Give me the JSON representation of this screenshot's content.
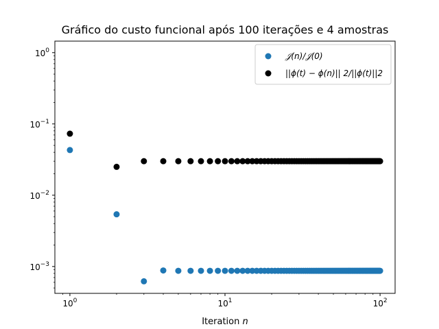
{
  "chart_data": {
    "type": "scatter",
    "title": "Gráfico do custo funcional após 100 iterações e 4 amostras",
    "xlabel": "Iteration",
    "xlabel_var": "n",
    "ylabel": "",
    "xscale": "log",
    "yscale": "log",
    "xlim": [
      0.8,
      125
    ],
    "ylim": [
      0.00042,
      1.45
    ],
    "grid": false,
    "legend_position": "top-right",
    "x_ticks": [
      {
        "value": 1,
        "base": "10",
        "exp": "0"
      },
      {
        "value": 10,
        "base": "10",
        "exp": "1"
      },
      {
        "value": 100,
        "base": "10",
        "exp": "2"
      }
    ],
    "y_ticks": [
      {
        "value": 0.001,
        "base": "10",
        "exp": "−3"
      },
      {
        "value": 0.01,
        "base": "10",
        "exp": "−2"
      },
      {
        "value": 0.1,
        "base": "10",
        "exp": "−1"
      },
      {
        "value": 1,
        "base": "10",
        "exp": "0"
      }
    ],
    "series": [
      {
        "name": "𝒥(n)/𝒥(0)",
        "color": "#1f77b4",
        "x": [
          1,
          2,
          3,
          4,
          5,
          6,
          7,
          8,
          9,
          10,
          11,
          12,
          13,
          14,
          15,
          16,
          17,
          18,
          19,
          20,
          21,
          22,
          23,
          24,
          25,
          26,
          27,
          28,
          29,
          30,
          31,
          32,
          33,
          34,
          35,
          36,
          37,
          38,
          39,
          40,
          41,
          42,
          43,
          44,
          45,
          46,
          47,
          48,
          49,
          50,
          51,
          52,
          53,
          54,
          55,
          56,
          57,
          58,
          59,
          60,
          61,
          62,
          63,
          64,
          65,
          66,
          67,
          68,
          69,
          70,
          71,
          72,
          73,
          74,
          75,
          76,
          77,
          78,
          79,
          80,
          81,
          82,
          83,
          84,
          85,
          86,
          87,
          88,
          89,
          90,
          91,
          92,
          93,
          94,
          95,
          96,
          97,
          98,
          99,
          100
        ],
        "y": [
          0.043,
          0.0054,
          0.00062,
          0.00088,
          0.00087,
          0.00087,
          0.00087,
          0.00087,
          0.00087,
          0.00087,
          0.00087,
          0.00087,
          0.00087,
          0.00087,
          0.00087,
          0.00087,
          0.00087,
          0.00087,
          0.00087,
          0.00087,
          0.00087,
          0.00087,
          0.00087,
          0.00087,
          0.00087,
          0.00087,
          0.00087,
          0.00087,
          0.00087,
          0.00087,
          0.00087,
          0.00087,
          0.00087,
          0.00087,
          0.00087,
          0.00087,
          0.00087,
          0.00087,
          0.00087,
          0.00087,
          0.00087,
          0.00087,
          0.00087,
          0.00087,
          0.00087,
          0.00087,
          0.00087,
          0.00087,
          0.00087,
          0.00087,
          0.00087,
          0.00087,
          0.00087,
          0.00087,
          0.00087,
          0.00087,
          0.00087,
          0.00087,
          0.00087,
          0.00087,
          0.00087,
          0.00087,
          0.00087,
          0.00087,
          0.00087,
          0.00087,
          0.00087,
          0.00087,
          0.00087,
          0.00087,
          0.00087,
          0.00087,
          0.00087,
          0.00087,
          0.00087,
          0.00087,
          0.00087,
          0.00087,
          0.00087,
          0.00087,
          0.00087,
          0.00087,
          0.00087,
          0.00087,
          0.00087,
          0.00087,
          0.00087,
          0.00087,
          0.00087,
          0.00087,
          0.00087,
          0.00087,
          0.00087,
          0.00087,
          0.00087,
          0.00087,
          0.00087,
          0.00087,
          0.00087,
          0.00087
        ]
      },
      {
        "name": "||ϕ(t) − ϕ(n)|| 2/||ϕ(t)||2",
        "color": "#000000",
        "x": [
          1,
          2,
          3,
          4,
          5,
          6,
          7,
          8,
          9,
          10,
          11,
          12,
          13,
          14,
          15,
          16,
          17,
          18,
          19,
          20,
          21,
          22,
          23,
          24,
          25,
          26,
          27,
          28,
          29,
          30,
          31,
          32,
          33,
          34,
          35,
          36,
          37,
          38,
          39,
          40,
          41,
          42,
          43,
          44,
          45,
          46,
          47,
          48,
          49,
          50,
          51,
          52,
          53,
          54,
          55,
          56,
          57,
          58,
          59,
          60,
          61,
          62,
          63,
          64,
          65,
          66,
          67,
          68,
          69,
          70,
          71,
          72,
          73,
          74,
          75,
          76,
          77,
          78,
          79,
          80,
          81,
          82,
          83,
          84,
          85,
          86,
          87,
          88,
          89,
          90,
          91,
          92,
          93,
          94,
          95,
          96,
          97,
          98,
          99,
          100
        ],
        "y": [
          0.073,
          0.025,
          0.03,
          0.03,
          0.03,
          0.03,
          0.03,
          0.03,
          0.03,
          0.03,
          0.03,
          0.03,
          0.03,
          0.03,
          0.03,
          0.03,
          0.03,
          0.03,
          0.03,
          0.03,
          0.03,
          0.03,
          0.03,
          0.03,
          0.03,
          0.03,
          0.03,
          0.03,
          0.03,
          0.03,
          0.03,
          0.03,
          0.03,
          0.03,
          0.03,
          0.03,
          0.03,
          0.03,
          0.03,
          0.03,
          0.03,
          0.03,
          0.03,
          0.03,
          0.03,
          0.03,
          0.03,
          0.03,
          0.03,
          0.03,
          0.03,
          0.03,
          0.03,
          0.03,
          0.03,
          0.03,
          0.03,
          0.03,
          0.03,
          0.03,
          0.03,
          0.03,
          0.03,
          0.03,
          0.03,
          0.03,
          0.03,
          0.03,
          0.03,
          0.03,
          0.03,
          0.03,
          0.03,
          0.03,
          0.03,
          0.03,
          0.03,
          0.03,
          0.03,
          0.03,
          0.03,
          0.03,
          0.03,
          0.03,
          0.03,
          0.03,
          0.03,
          0.03,
          0.03,
          0.03,
          0.03,
          0.03,
          0.03,
          0.03,
          0.03,
          0.03,
          0.03,
          0.03,
          0.03,
          0.03
        ]
      }
    ]
  }
}
